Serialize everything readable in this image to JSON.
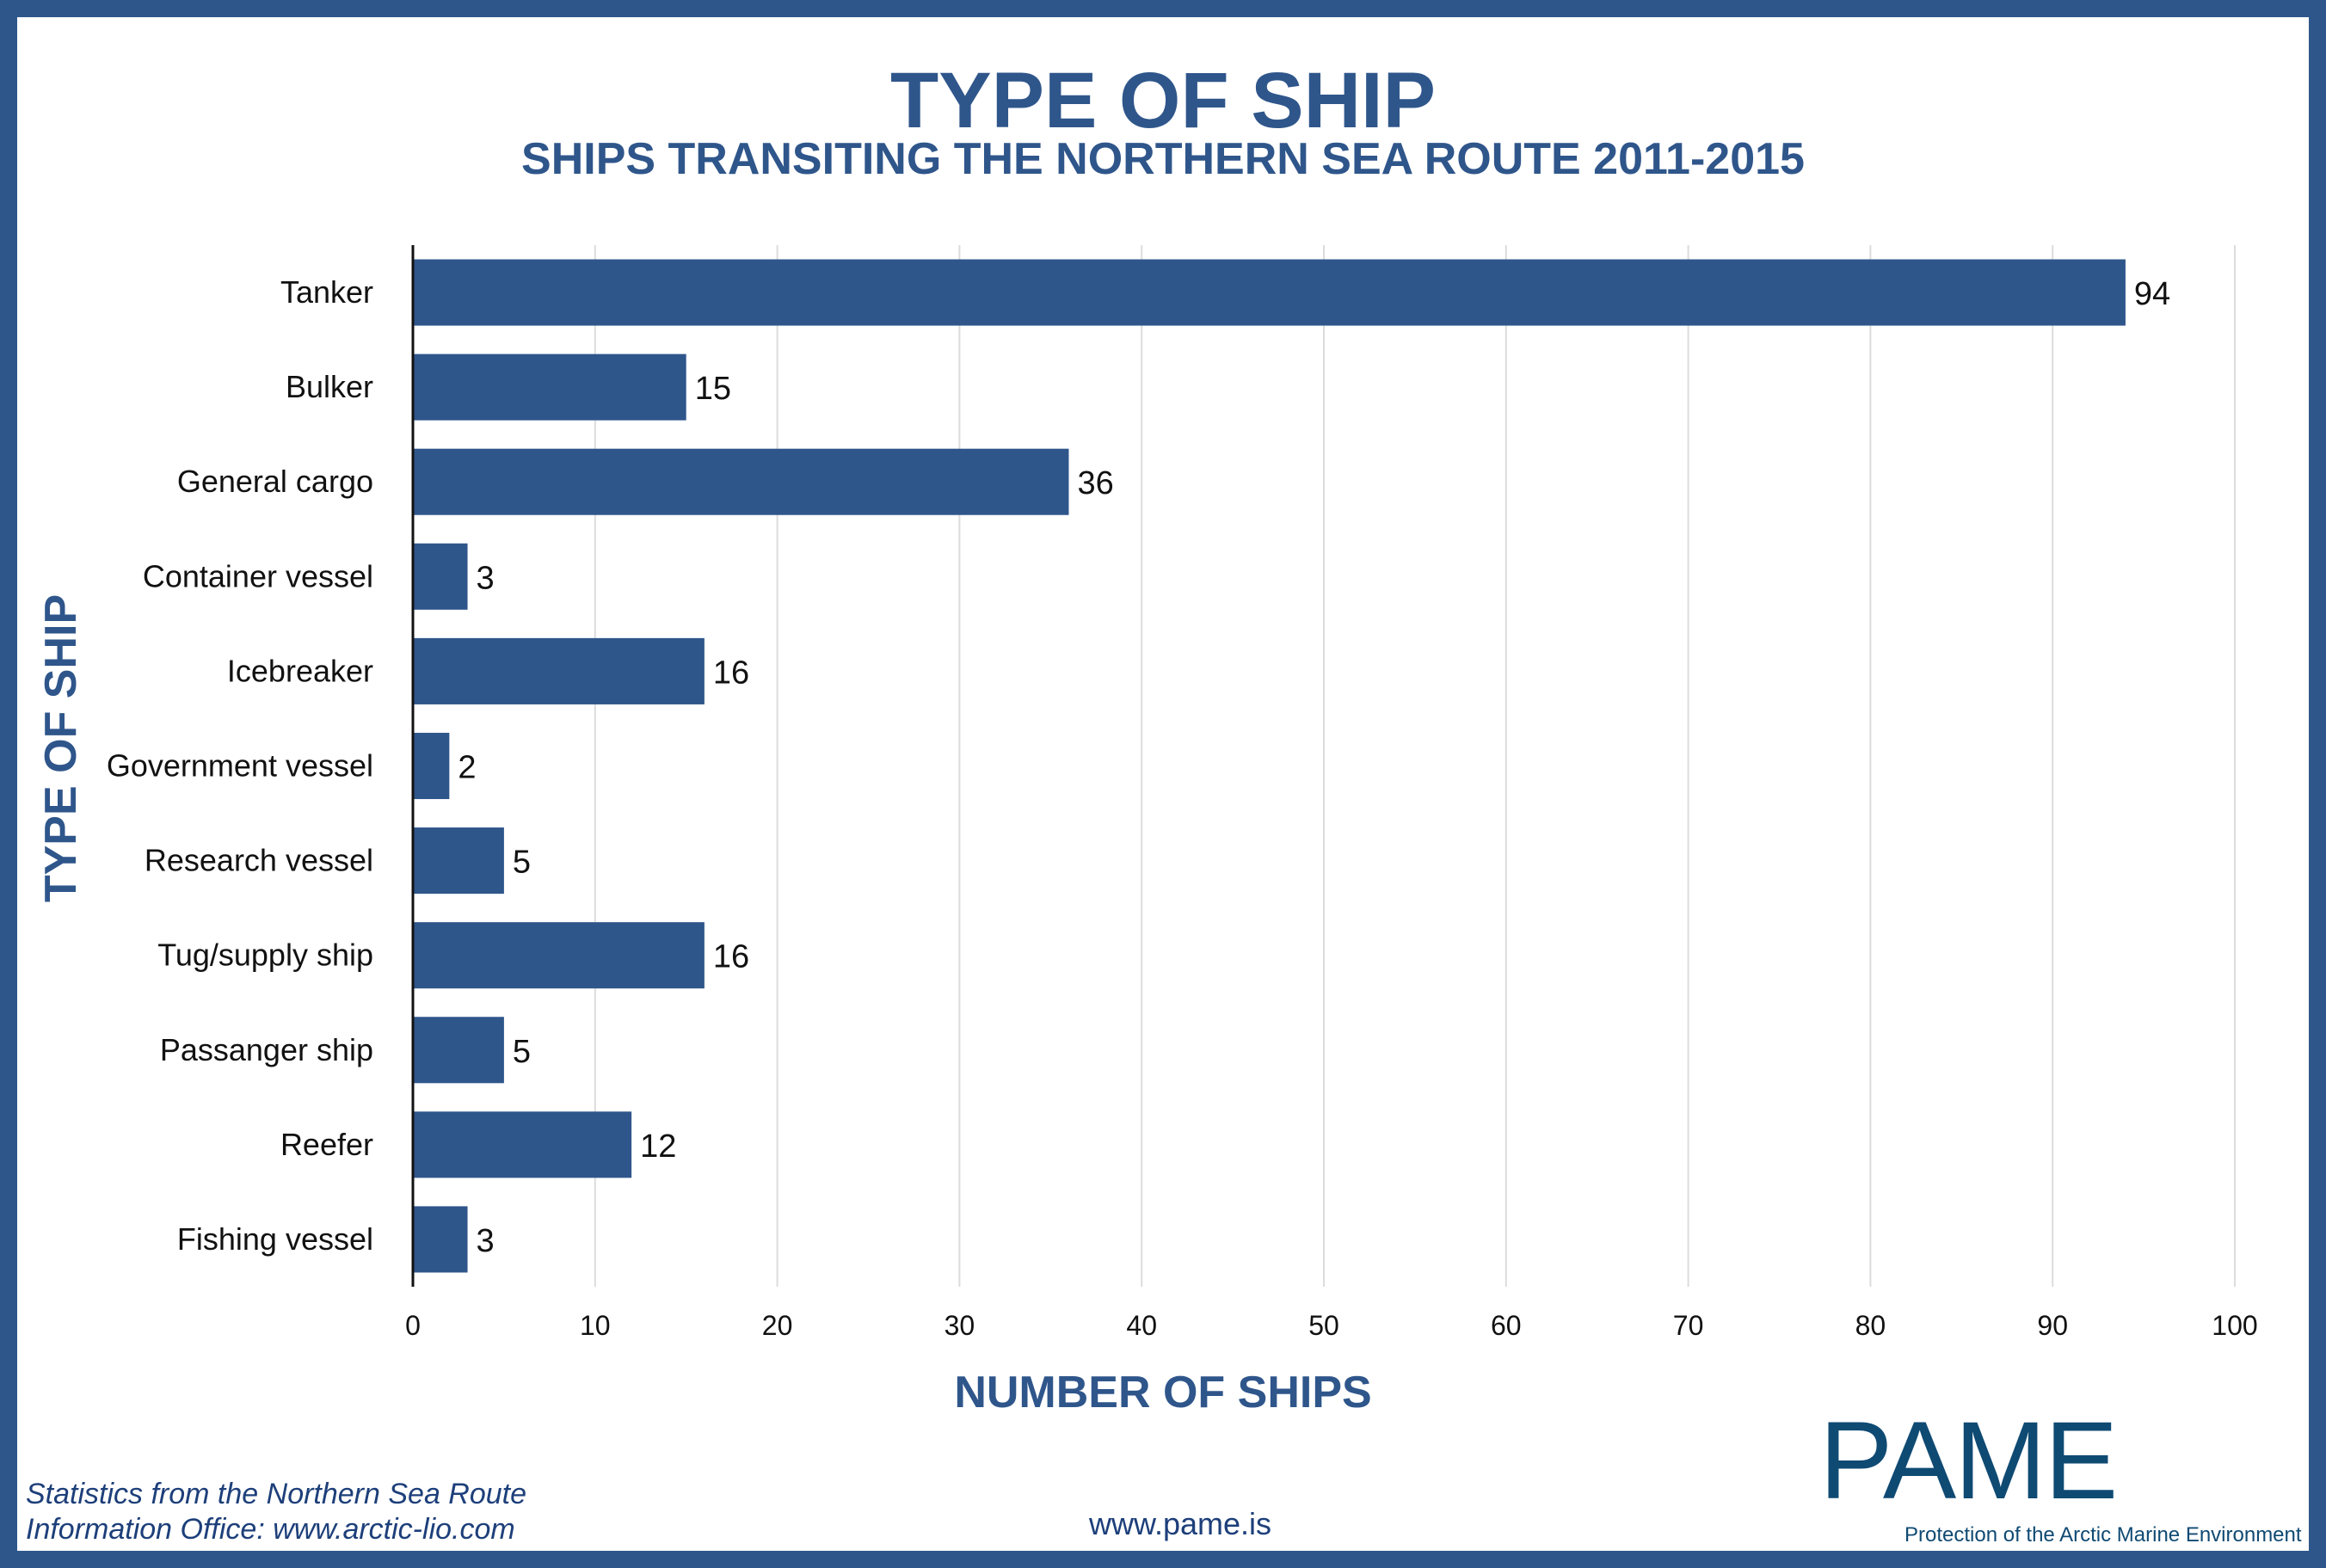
{
  "chart_data": {
    "type": "bar",
    "orientation": "horizontal",
    "title": "TYPE OF SHIP",
    "subtitle": "SHIPS TRANSITING THE NORTHERN SEA ROUTE 2011-2015",
    "xlabel": "NUMBER OF SHIPS",
    "ylabel": "TYPE OF SHIP",
    "categories": [
      "Tanker",
      "Bulker",
      "General cargo",
      "Container vessel",
      "Icebreaker",
      "Government vessel",
      "Research vessel",
      "Tug/supply ship",
      "Passanger ship",
      "Reefer",
      "Fishing vessel"
    ],
    "values": [
      94,
      15,
      36,
      3,
      16,
      2,
      5,
      16,
      5,
      12,
      3
    ],
    "xlim": [
      0,
      100
    ],
    "xticks": [
      0,
      10,
      20,
      30,
      40,
      50,
      60,
      70,
      80,
      90,
      100
    ],
    "grid": "vertical",
    "legend": "none",
    "bar_color": "#2f568b"
  },
  "footer": {
    "source_line1": "Statistics from the Northern Sea Route",
    "source_line2": "Information Office: www.arctic-lio.com",
    "website": "www.pame.is"
  },
  "logo": {
    "text": "PAME",
    "tagline": "Protection of the Arctic Marine Environment"
  },
  "colors": {
    "frame": "#2f568b",
    "title": "#2f568b",
    "bars": "#2f568b",
    "logo": "#0f4a73"
  }
}
